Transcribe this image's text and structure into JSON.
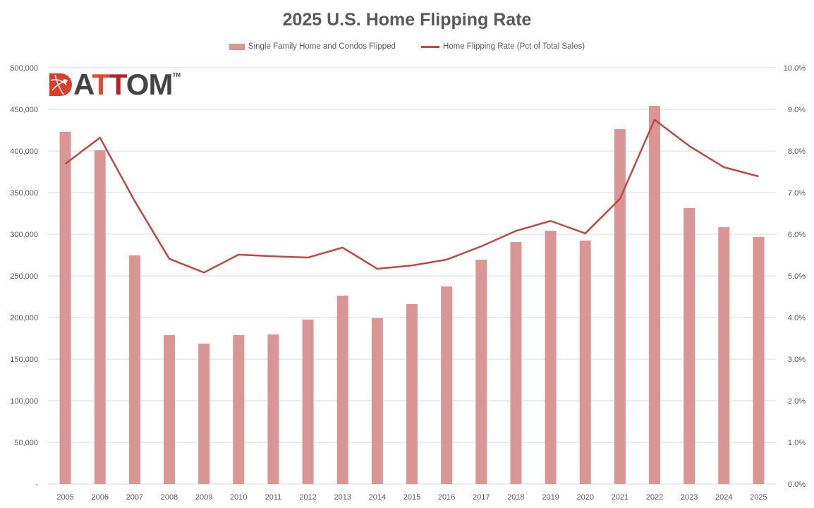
{
  "colors": {
    "bar": "#d99694",
    "line": "#b94a48",
    "grid": "#d9d9d9",
    "text": "#595959"
  },
  "logo": {
    "text": "ATTOM",
    "tm": "TM"
  },
  "chart_data": {
    "type": "bar",
    "title": "2025 U.S. Home Flipping Rate",
    "legend_placement": "top-center",
    "categories": [
      "2005",
      "2006",
      "2007",
      "2008",
      "2009",
      "2010",
      "2011",
      "2012",
      "2013",
      "2014",
      "2015",
      "2016",
      "2017",
      "2018",
      "2019",
      "2020",
      "2021",
      "2022",
      "2023",
      "2024",
      "2025"
    ],
    "series": [
      {
        "name": "Single Family Home and Condos Flipped",
        "type": "bar",
        "axis": "left",
        "values": [
          423000,
          401000,
          274600,
          178800,
          168600,
          178800,
          179700,
          197500,
          226300,
          199200,
          216100,
          237300,
          269500,
          290700,
          304200,
          292400,
          426300,
          454200,
          331400,
          308500,
          296600
        ]
      },
      {
        "name": "Home Flipping Rate (Pct of Total Sales)",
        "type": "line",
        "axis": "right",
        "values": [
          7.69,
          8.32,
          6.8,
          5.41,
          5.08,
          5.51,
          5.47,
          5.44,
          5.68,
          5.17,
          5.25,
          5.39,
          5.71,
          6.08,
          6.32,
          6.02,
          6.85,
          8.75,
          8.12,
          7.61,
          7.39
        ]
      }
    ],
    "y_left": {
      "range": [
        0,
        500000
      ],
      "ticks": [
        "-",
        "50,000",
        "100,000",
        "150,000",
        "200,000",
        "250,000",
        "300,000",
        "350,000",
        "400,000",
        "450,000",
        "500,000"
      ]
    },
    "y_right": {
      "range": [
        0,
        10
      ],
      "ticks": [
        "0.0%",
        "1.0%",
        "2.0%",
        "3.0%",
        "4.0%",
        "5.0%",
        "6.0%",
        "7.0%",
        "8.0%",
        "9.0%",
        "10.0%"
      ]
    },
    "grid": true
  }
}
